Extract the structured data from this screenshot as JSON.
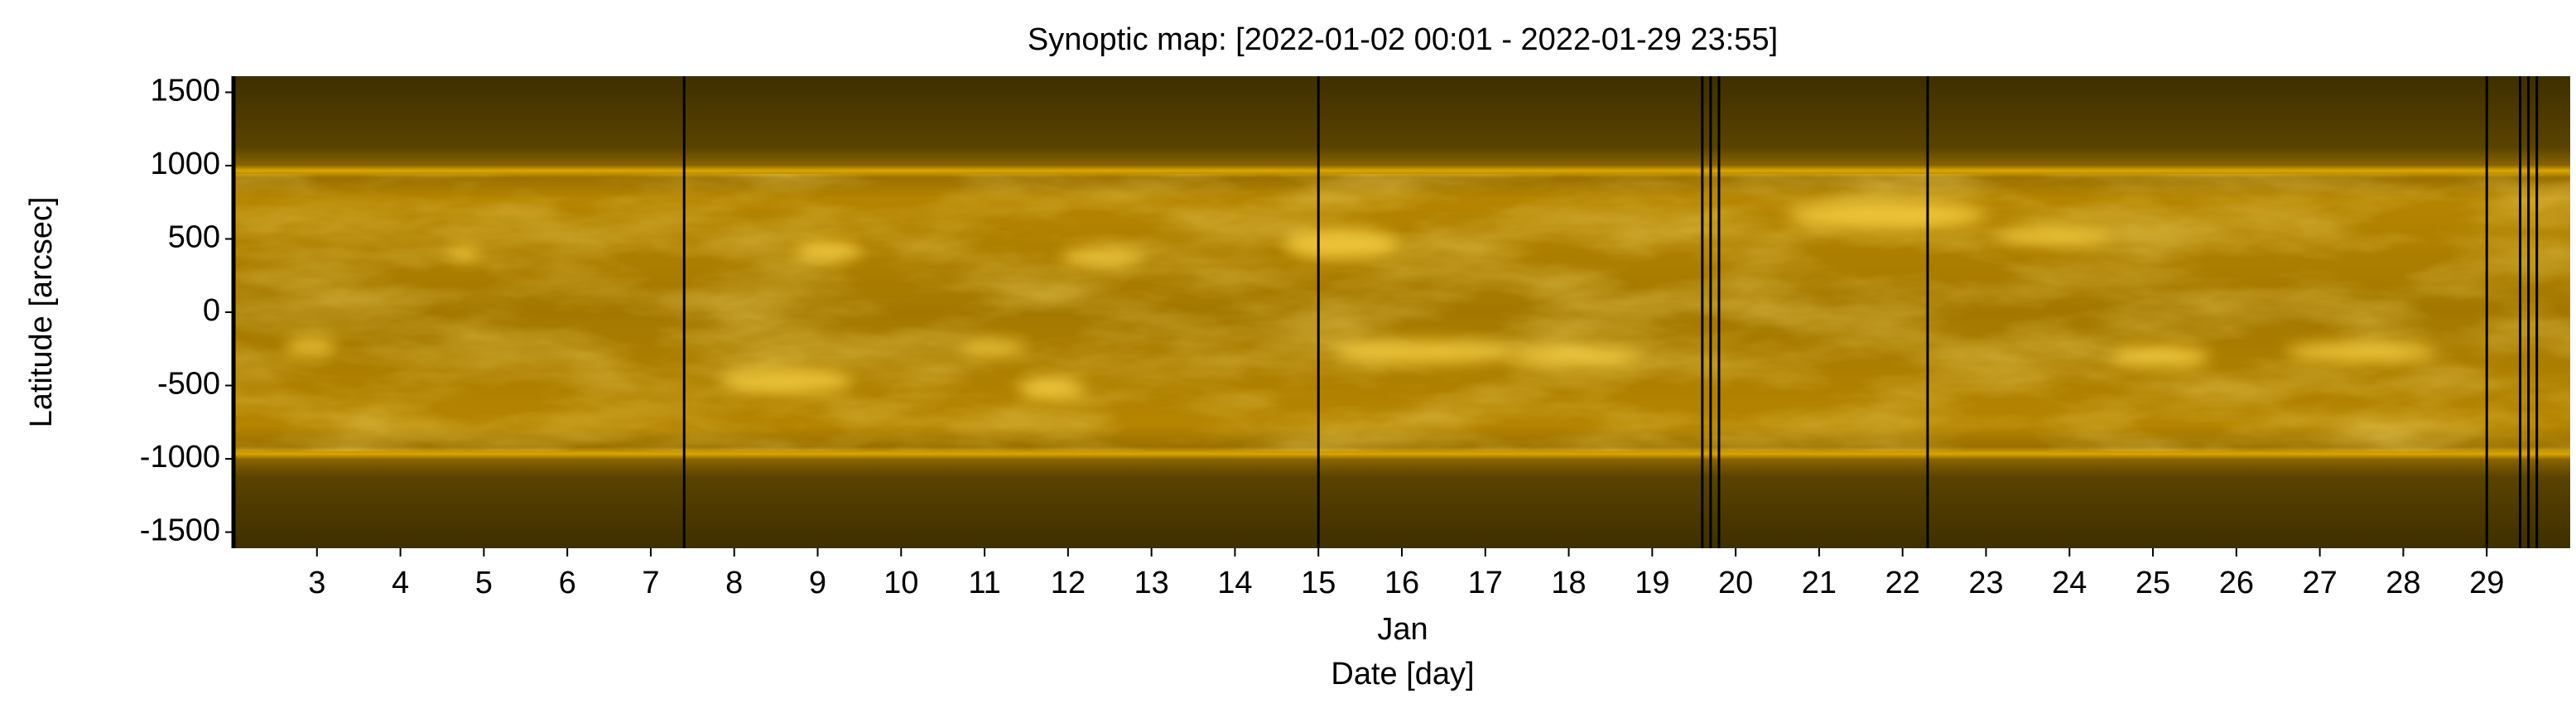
{
  "chart_data": {
    "type": "heatmap",
    "title": "Synoptic map: [2022-01-02 00:01 - 2022-01-29 23:55]",
    "xlabel": "Date [day]",
    "x_month_label": "Jan",
    "ylabel": "Latitude [arcsec]",
    "xlim": [
      2,
      30
    ],
    "xticks": [
      3,
      4,
      5,
      6,
      7,
      8,
      9,
      10,
      11,
      12,
      13,
      14,
      15,
      16,
      17,
      18,
      19,
      20,
      21,
      22,
      23,
      24,
      25,
      26,
      27,
      28,
      29
    ],
    "ylim": [
      -1610,
      1610
    ],
    "yticks": [
      1500,
      1000,
      500,
      0,
      -500,
      -1000,
      -1500
    ],
    "data_gaps": [
      7.4,
      15.0,
      19.6,
      19.7,
      19.8,
      22.3,
      29.0,
      29.4,
      29.5,
      29.6
    ],
    "colormap": "sdoaia171"
  }
}
